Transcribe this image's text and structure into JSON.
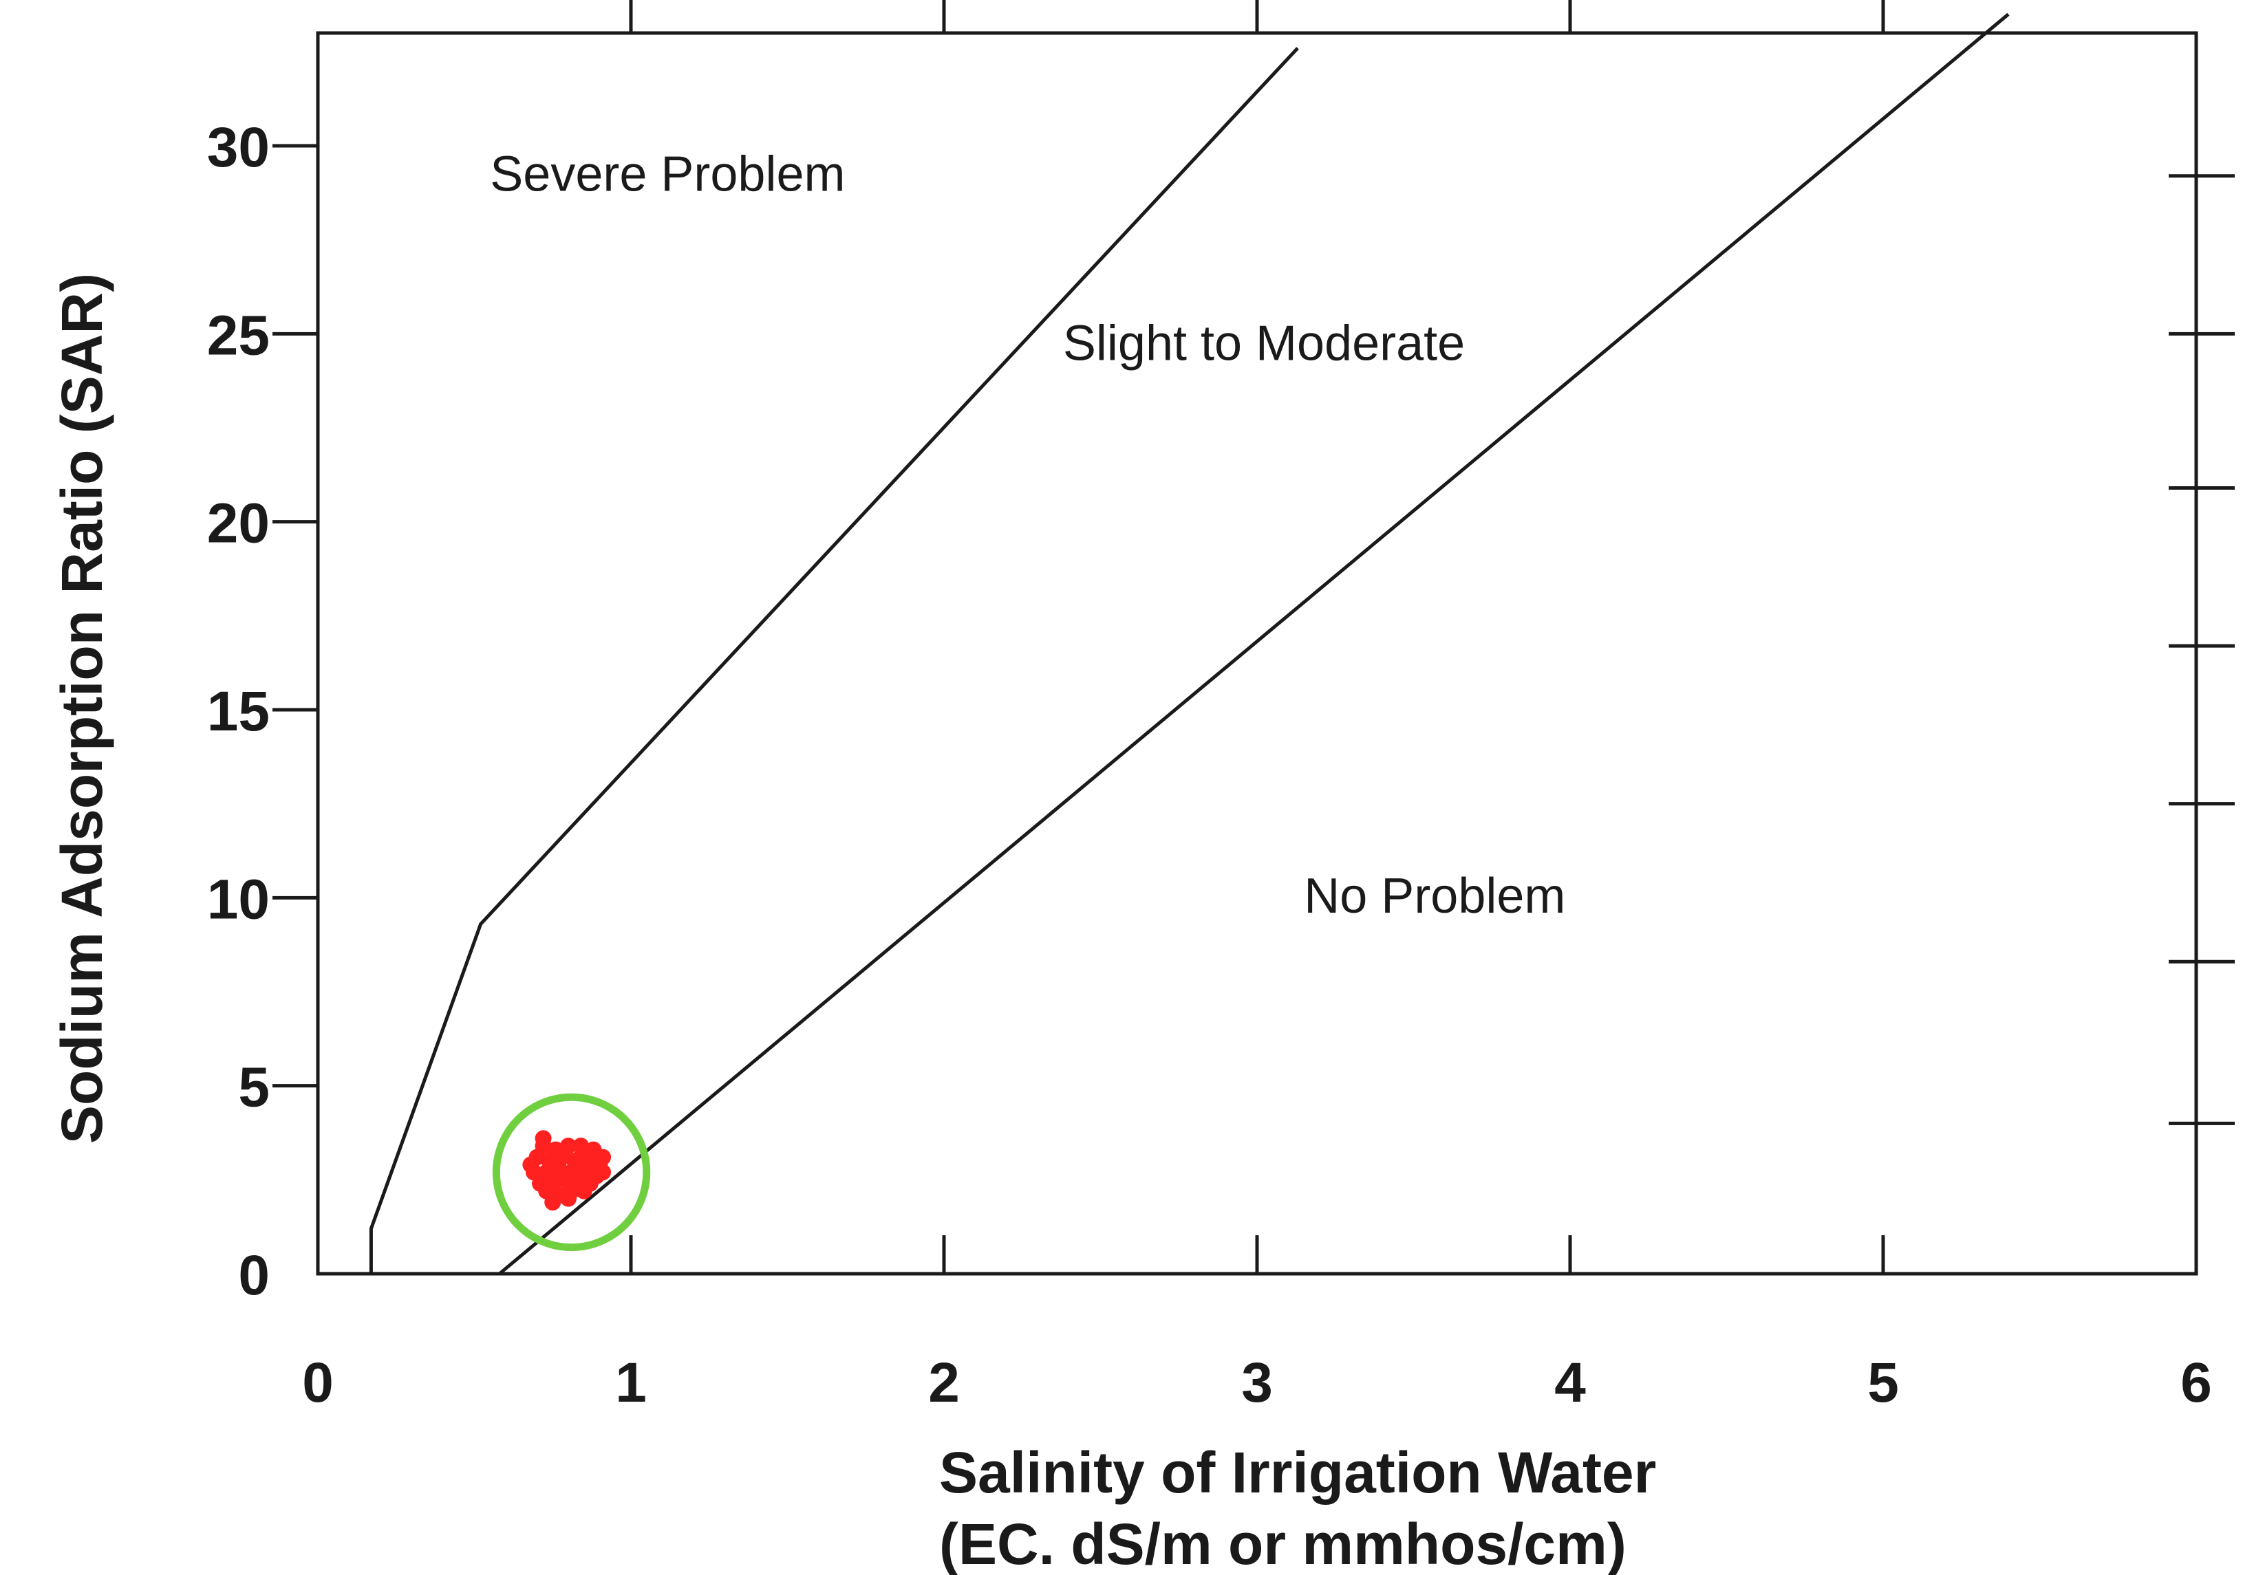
{
  "chart_data": {
    "type": "scatter",
    "title": "",
    "xlabel": [
      "Salinity of Irrigation Water",
      "(EC. dS/m or mmhos/cm)"
    ],
    "ylabel": "Sodium Adsorption Ratio (SAR)",
    "xlim": [
      0,
      6
    ],
    "ylim": [
      0,
      33
    ],
    "x_ticks": [
      0,
      1,
      2,
      3,
      4,
      5,
      6
    ],
    "x_tick_labels": [
      "0",
      "1",
      "2",
      "3",
      "4",
      "5",
      "6"
    ],
    "y_ticks": [
      0,
      5,
      10,
      15,
      20,
      25,
      30
    ],
    "y_tick_labels": [
      "0",
      "5",
      "10",
      "15",
      "20",
      "25",
      "30"
    ],
    "top_tick_x": [
      1,
      2,
      3,
      4,
      5
    ],
    "right_tick_y": [
      4.0,
      8.3,
      12.5,
      16.7,
      20.9,
      25.0,
      29.2
    ],
    "grid": false,
    "boundary_lines": [
      {
        "name": "severe-boundary",
        "points": [
          [
            0.17,
            0
          ],
          [
            0.17,
            1.2
          ],
          [
            0.52,
            9.3
          ],
          [
            3.13,
            32.6
          ]
        ]
      },
      {
        "name": "slight-boundary",
        "points": [
          [
            0.58,
            0
          ],
          [
            5.4,
            33.5
          ]
        ]
      }
    ],
    "regions": [
      {
        "label": "Severe Problem",
        "x": 0.55,
        "y": 28.8
      },
      {
        "label": "Slight to Moderate",
        "x": 2.38,
        "y": 24.3
      },
      {
        "label": "No Problem",
        "x": 3.15,
        "y": 9.6
      }
    ],
    "samples": {
      "color": "#ff2020",
      "points": [
        [
          0.72,
          3.4
        ],
        [
          0.76,
          3.3
        ],
        [
          0.8,
          3.4
        ],
        [
          0.84,
          3.4
        ],
        [
          0.88,
          3.3
        ],
        [
          0.91,
          3.1
        ],
        [
          0.7,
          3.1
        ],
        [
          0.74,
          3.0
        ],
        [
          0.78,
          3.1
        ],
        [
          0.82,
          3.0
        ],
        [
          0.86,
          3.0
        ],
        [
          0.9,
          2.9
        ],
        [
          0.69,
          2.7
        ],
        [
          0.73,
          2.7
        ],
        [
          0.77,
          2.8
        ],
        [
          0.81,
          2.7
        ],
        [
          0.85,
          2.7
        ],
        [
          0.89,
          2.6
        ],
        [
          0.71,
          2.4
        ],
        [
          0.75,
          2.4
        ],
        [
          0.79,
          2.5
        ],
        [
          0.83,
          2.4
        ],
        [
          0.87,
          2.4
        ],
        [
          0.91,
          2.7
        ],
        [
          0.73,
          2.2
        ],
        [
          0.77,
          2.1
        ],
        [
          0.81,
          2.2
        ],
        [
          0.85,
          2.2
        ],
        [
          0.75,
          1.9
        ],
        [
          0.8,
          2.0
        ],
        [
          0.72,
          3.6
        ],
        [
          0.68,
          2.9
        ],
        [
          0.84,
          3.1
        ],
        [
          0.78,
          2.6
        ],
        [
          0.88,
          2.9
        ]
      ]
    },
    "highlight": {
      "shape": "circle",
      "color": "#6fcf3f",
      "center": [
        0.81,
        2.7
      ],
      "radius_x": 0.24
    }
  }
}
